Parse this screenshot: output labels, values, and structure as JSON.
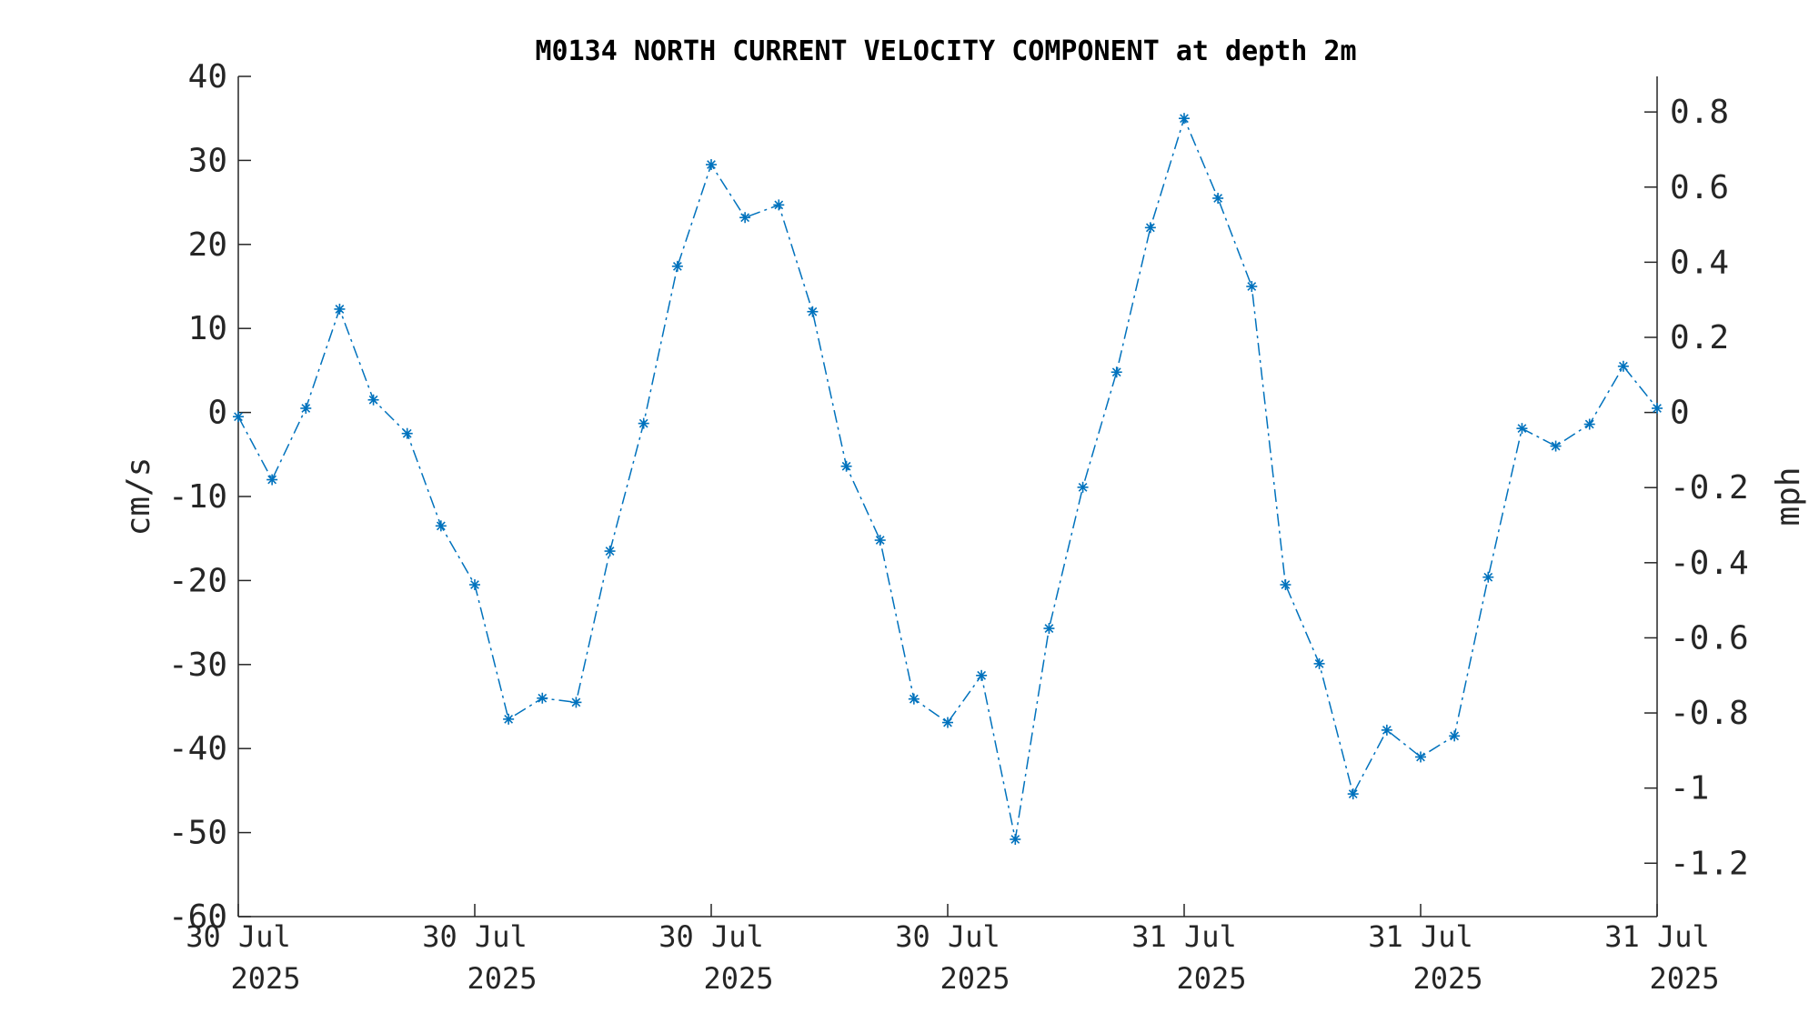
{
  "chart_data": {
    "type": "line",
    "title": "M0134 NORTH CURRENT VELOCITY COMPONENT at depth 2m",
    "ylabel": "cm/s",
    "y2label": "mph",
    "ylim": [
      -60,
      40
    ],
    "yticks": [
      "40",
      "30",
      "20",
      "10",
      "0",
      "-10",
      "-20",
      "-30",
      "-40",
      "-50",
      "-60"
    ],
    "y2ticks": [
      "0.8",
      "0.6",
      "0.4",
      "0.2",
      "0",
      "-0.2",
      "-0.4",
      "-0.6",
      "-0.8",
      "-1",
      "-1.2"
    ],
    "y2tick_values": [
      0.8,
      0.6,
      0.4,
      0.2,
      0,
      -0.2,
      -0.4,
      -0.6,
      -0.8,
      -1,
      -1.2
    ],
    "xticks": [
      {
        "line1": "30 Jul",
        "line2": "2025"
      },
      {
        "line1": "30 Jul",
        "line2": "2025"
      },
      {
        "line1": "30 Jul",
        "line2": "2025"
      },
      {
        "line1": "30 Jul",
        "line2": "2025"
      },
      {
        "line1": "31 Jul",
        "line2": "2025"
      },
      {
        "line1": "31 Jul",
        "line2": "2025"
      },
      {
        "line1": "31 Jul",
        "line2": "2025"
      }
    ],
    "grid": false,
    "marker": "asterisk",
    "line_style": "dash-dot",
    "color": "#0072BD",
    "series": [
      {
        "values": [
          -0.5,
          -8,
          0.5,
          12.3,
          1.5,
          -2.5,
          -13.5,
          -20.5,
          -36.5,
          -34,
          -34.5,
          -16.5,
          -1.3,
          17.4,
          29.5,
          23.2,
          24.7,
          12,
          -6.4,
          -15.2,
          -34.1,
          -36.9,
          -31.3,
          -50.8,
          -25.7,
          -8.9,
          4.8,
          22,
          35,
          25.5,
          15,
          -20.5,
          -29.9,
          -45.4,
          -37.8,
          -41,
          -38.5,
          -19.6,
          -1.9,
          -4,
          -1.4,
          5.5,
          0.5
        ]
      }
    ]
  }
}
